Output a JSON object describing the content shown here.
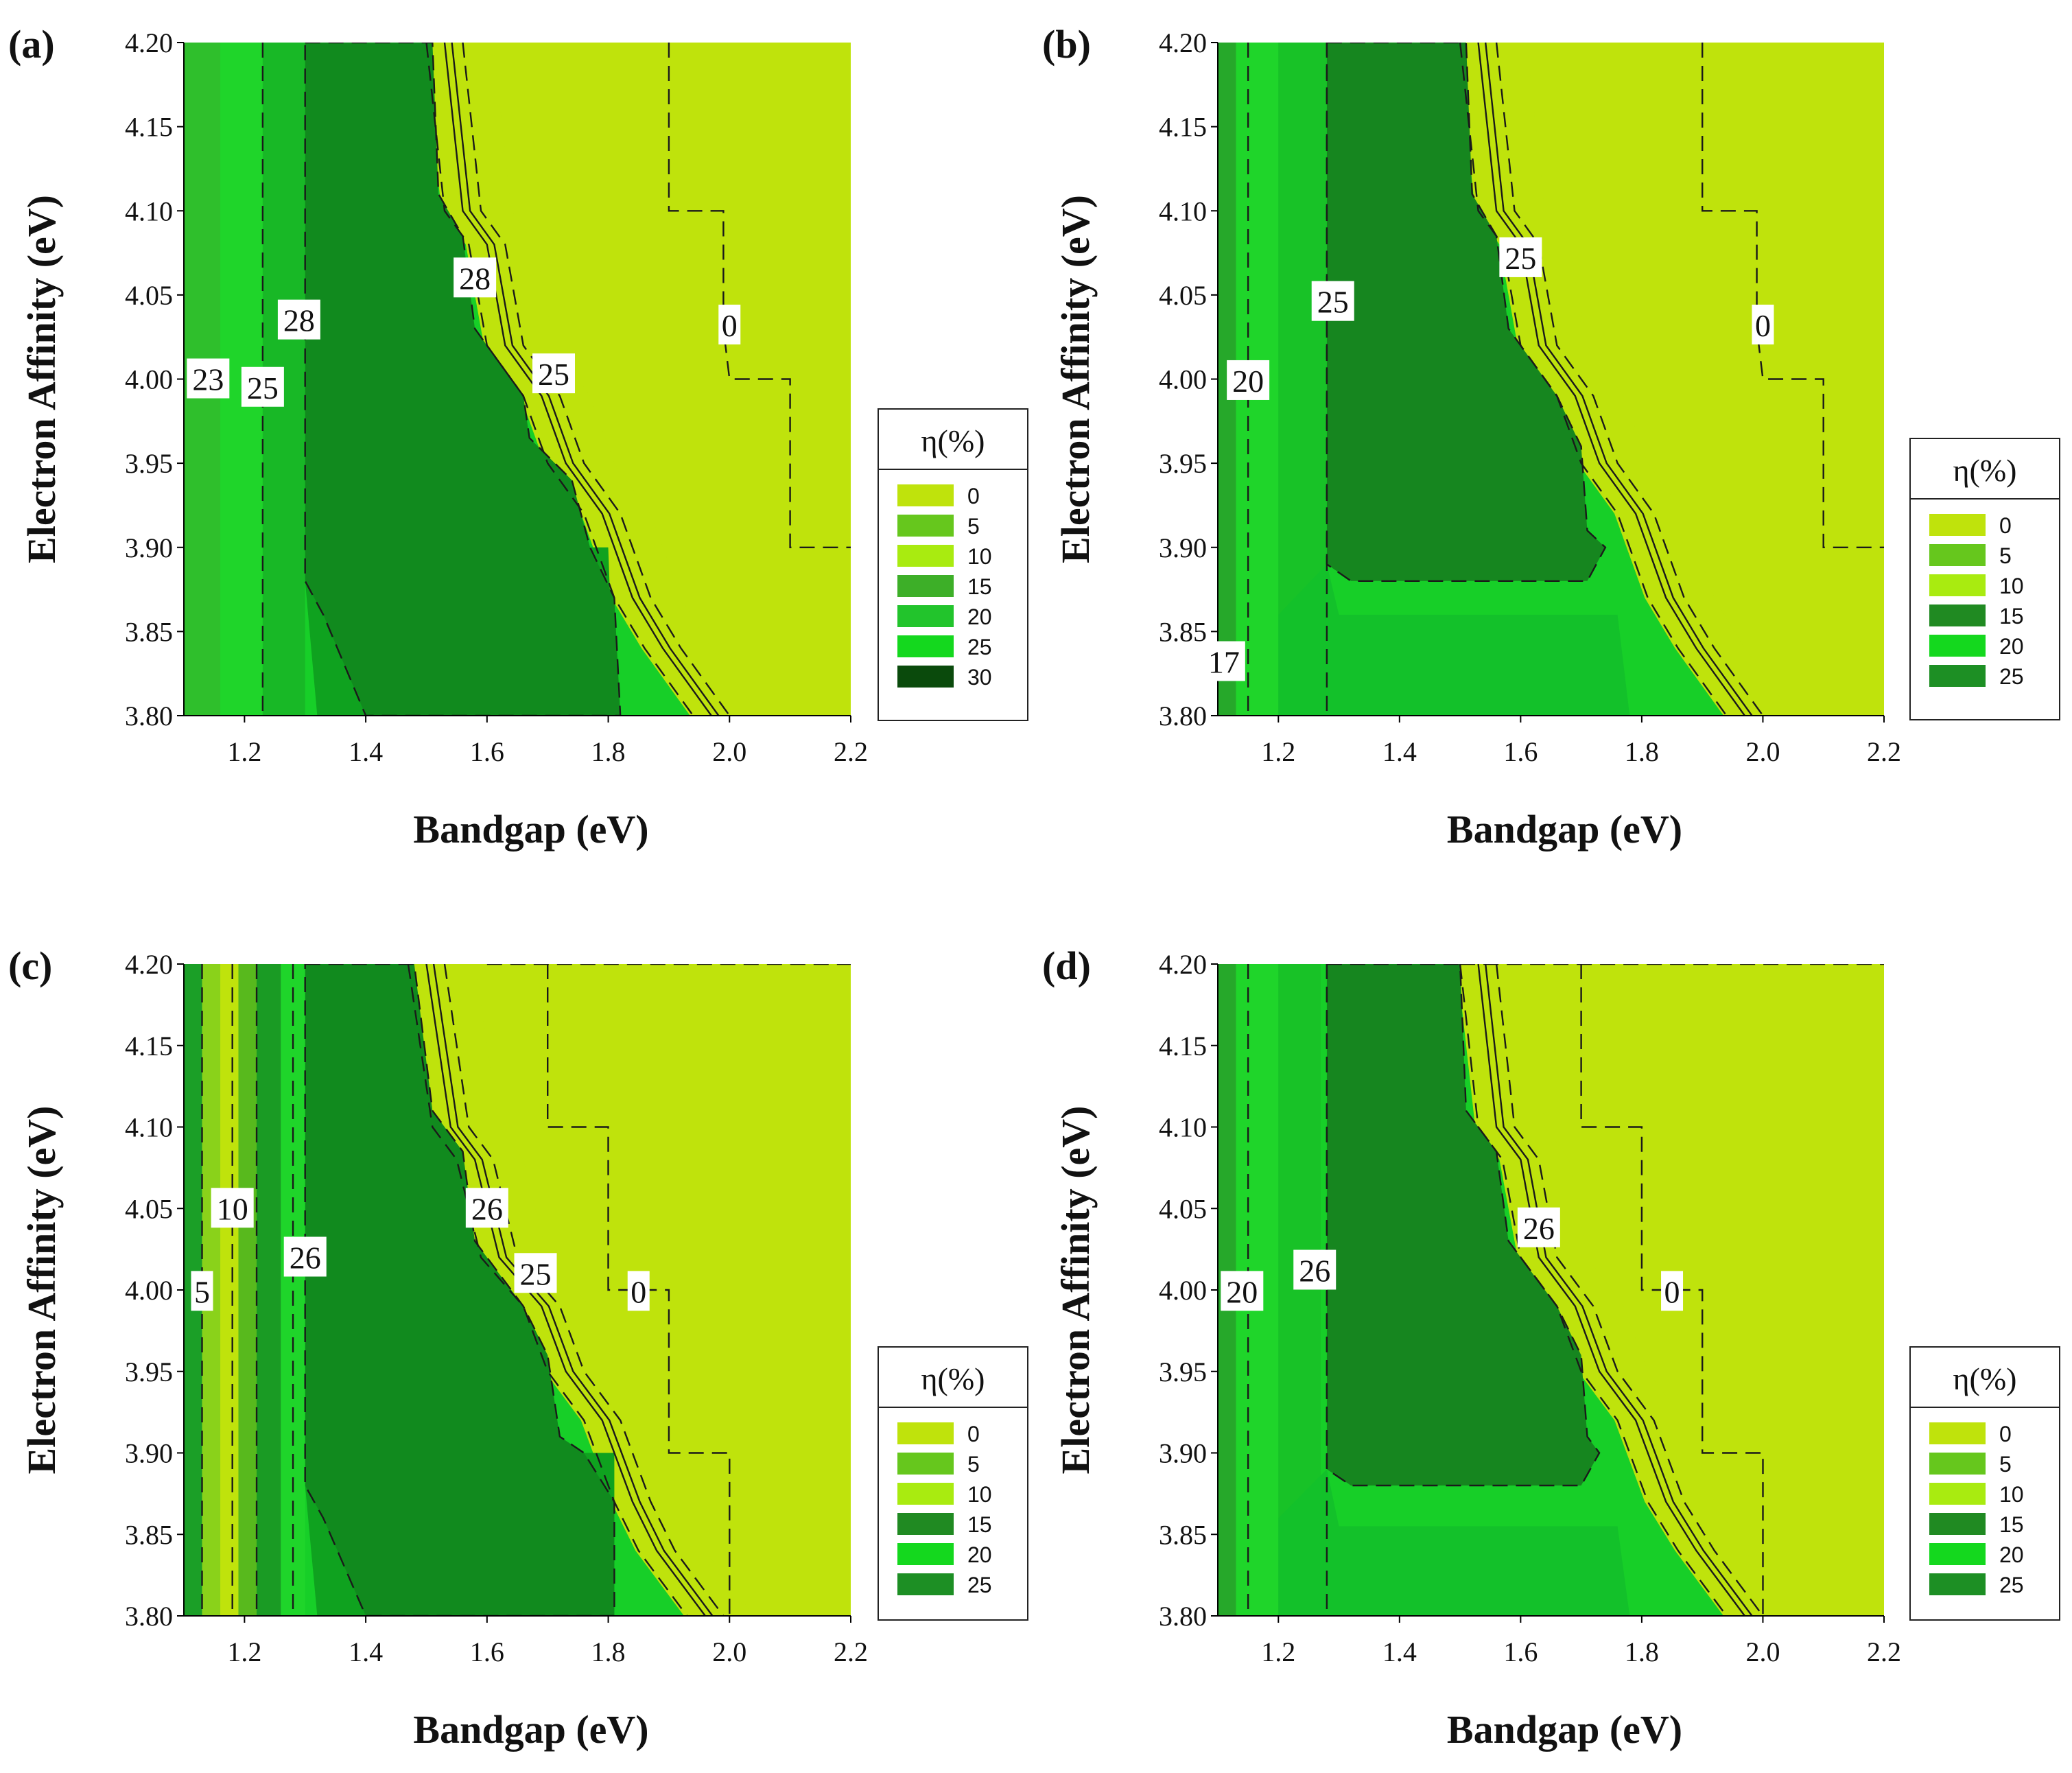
{
  "chart_data": [
    {
      "panel_label": "(a)",
      "type": "heatmap",
      "xlabel": "Bandgap (eV)",
      "ylabel": "Electron Affinity (eV)",
      "xlim": [
        1.1,
        2.2
      ],
      "ylim": [
        3.8,
        4.2
      ],
      "x_ticks": [
        "1.2",
        "1.4",
        "1.6",
        "1.8",
        "2.0",
        "2.2"
      ],
      "y_ticks": [
        "3.80",
        "3.85",
        "3.90",
        "3.95",
        "4.00",
        "4.05",
        "4.10",
        "4.15",
        "4.20"
      ],
      "legend_title": "η(%)",
      "legend_levels": [
        "0",
        "5",
        "10",
        "15",
        "20",
        "25",
        "30"
      ],
      "legend_colors": [
        "#bfe30c",
        "#66c71d",
        "#a9eb10",
        "#3daf28",
        "#22c42c",
        "#14d81e",
        "#0a4a0c"
      ],
      "contour_labels": [
        {
          "text": "23",
          "x": 1.14,
          "y": 4.0
        },
        {
          "text": "25",
          "x": 1.23,
          "y": 3.995
        },
        {
          "text": "28",
          "x": 1.29,
          "y": 4.035
        },
        {
          "text": "28",
          "x": 1.58,
          "y": 4.06
        },
        {
          "text": "25",
          "x": 1.71,
          "y": 4.003
        },
        {
          "text": "0",
          "x": 2.0,
          "y": 4.032
        }
      ]
    },
    {
      "panel_label": "(b)",
      "type": "heatmap",
      "xlabel": "Bandgap (eV)",
      "ylabel": "Electron Affinity (eV)",
      "xlim": [
        1.1,
        2.2
      ],
      "ylim": [
        3.8,
        4.2
      ],
      "x_ticks": [
        "1.2",
        "1.4",
        "1.6",
        "1.8",
        "2.0",
        "2.2"
      ],
      "y_ticks": [
        "3.80",
        "3.85",
        "3.90",
        "3.95",
        "4.00",
        "4.05",
        "4.10",
        "4.15",
        "4.20"
      ],
      "legend_title": "η(%)",
      "legend_levels": [
        "0",
        "5",
        "10",
        "15",
        "20",
        "25"
      ],
      "legend_colors": [
        "#bfe30c",
        "#66c71d",
        "#a9eb10",
        "#208a22",
        "#14d81e",
        "#1d8f24"
      ],
      "contour_labels": [
        {
          "text": "20",
          "x": 1.15,
          "y": 3.999
        },
        {
          "text": "25",
          "x": 1.29,
          "y": 4.046
        },
        {
          "text": "25",
          "x": 1.6,
          "y": 4.072
        },
        {
          "text": "0",
          "x": 2.0,
          "y": 4.032
        },
        {
          "text": "17",
          "x": 1.11,
          "y": 3.832
        }
      ]
    },
    {
      "panel_label": "(c)",
      "type": "heatmap",
      "xlabel": "Bandgap (eV)",
      "ylabel": "Electron Affinity (eV)",
      "xlim": [
        1.1,
        2.2
      ],
      "ylim": [
        3.8,
        4.2
      ],
      "x_ticks": [
        "1.2",
        "1.4",
        "1.6",
        "1.8",
        "2.0",
        "2.2"
      ],
      "y_ticks": [
        "3.80",
        "3.85",
        "3.90",
        "3.95",
        "4.00",
        "4.05",
        "4.10",
        "4.15",
        "4.20"
      ],
      "legend_title": "η(%)",
      "legend_levels": [
        "0",
        "5",
        "10",
        "15",
        "20",
        "25"
      ],
      "legend_colors": [
        "#bfe30c",
        "#66c71d",
        "#a9eb10",
        "#208a22",
        "#14d81e",
        "#1d8f24"
      ],
      "contour_labels": [
        {
          "text": "5",
          "x": 1.13,
          "y": 3.999
        },
        {
          "text": "10",
          "x": 1.18,
          "y": 4.05
        },
        {
          "text": "26",
          "x": 1.3,
          "y": 4.02
        },
        {
          "text": "26",
          "x": 1.6,
          "y": 4.05
        },
        {
          "text": "25",
          "x": 1.68,
          "y": 4.01
        },
        {
          "text": "0",
          "x": 1.85,
          "y": 3.999
        }
      ]
    },
    {
      "panel_label": "(d)",
      "type": "heatmap",
      "xlabel": "Bandgap (eV)",
      "ylabel": "Electron Affinity (eV)",
      "xlim": [
        1.1,
        2.2
      ],
      "ylim": [
        3.8,
        4.2
      ],
      "x_ticks": [
        "1.2",
        "1.4",
        "1.6",
        "1.8",
        "2.0",
        "2.2"
      ],
      "y_ticks": [
        "3.80",
        "3.85",
        "3.90",
        "3.95",
        "4.00",
        "4.05",
        "4.10",
        "4.15",
        "4.20"
      ],
      "legend_title": "η(%)",
      "legend_levels": [
        "0",
        "5",
        "10",
        "15",
        "20",
        "25"
      ],
      "legend_colors": [
        "#bfe30c",
        "#66c71d",
        "#a9eb10",
        "#208a22",
        "#14d81e",
        "#1d8f24"
      ],
      "contour_labels": [
        {
          "text": "20",
          "x": 1.14,
          "y": 3.999
        },
        {
          "text": "26",
          "x": 1.26,
          "y": 4.012
        },
        {
          "text": "26",
          "x": 1.63,
          "y": 4.038
        },
        {
          "text": "0",
          "x": 1.85,
          "y": 3.999
        }
      ]
    }
  ]
}
